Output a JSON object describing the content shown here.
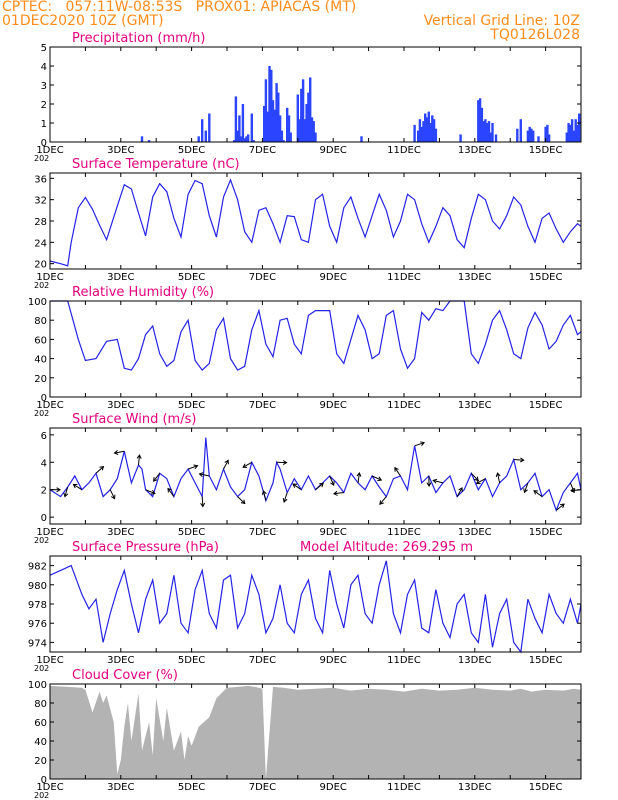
{
  "header": {
    "line1_left": "CPTEC:   057:11W-08:53S   PROX01: APIACAS (MT)",
    "line2_left": "01DEC2020 10Z (GMT)",
    "line2_right": "Vertical Grid Line: 10Z",
    "line3_right": "TQ0126L028",
    "color": "#ff8c1a"
  },
  "colors": {
    "title": "#e6007e",
    "series": "#2323e6",
    "precip_bar": "#2b45ff",
    "cloud_fill": "#b3b3b3",
    "axis": "#000000"
  },
  "x_axis": {
    "start": "01DEC2020 10Z",
    "end": "16DEC2020 10Z",
    "days": 15,
    "tick_labels": [
      "1DEC",
      "3DEC",
      "5DEC",
      "7DEC",
      "9DEC",
      "11DEC",
      "13DEC",
      "15DEC"
    ],
    "tick_days": [
      0,
      2,
      4,
      6,
      8,
      10,
      12,
      14
    ],
    "year_fragment": "202"
  },
  "chart_data": [
    {
      "id": "precip",
      "type": "bar",
      "title": "Precipitation (mm/h)",
      "ylim": [
        0,
        5
      ],
      "yticks": [
        0,
        1,
        2,
        3,
        4,
        5
      ],
      "x_days": [
        2.6,
        2.8,
        4.2,
        4.3,
        4.4,
        4.5,
        5.2,
        5.25,
        5.3,
        5.35,
        5.4,
        5.45,
        5.5,
        5.55,
        5.6,
        5.7,
        5.75,
        6.05,
        6.1,
        6.15,
        6.2,
        6.25,
        6.3,
        6.35,
        6.4,
        6.45,
        6.5,
        6.55,
        6.6,
        6.7,
        6.75,
        6.8,
        7.0,
        7.05,
        7.1,
        7.15,
        7.2,
        7.25,
        7.3,
        7.35,
        7.4,
        7.45,
        7.5,
        8.8,
        10.3,
        10.4,
        10.45,
        10.5,
        10.55,
        10.6,
        10.65,
        10.7,
        10.75,
        10.8,
        10.85,
        10.9,
        11.6,
        12.1,
        12.15,
        12.2,
        12.25,
        12.3,
        12.35,
        12.4,
        12.45,
        12.5,
        12.6,
        13.2,
        13.3,
        13.5,
        13.55,
        13.6,
        13.65,
        13.8,
        14.0,
        14.05,
        14.1,
        14.6,
        14.65,
        14.7,
        14.75,
        14.8,
        14.85,
        14.9,
        14.95
      ],
      "values": [
        0.3,
        0.1,
        0.3,
        1.2,
        0.6,
        1.5,
        0.1,
        2.4,
        0.6,
        1.4,
        0.3,
        2.0,
        0.2,
        0.3,
        0.4,
        1.5,
        0.1,
        1.9,
        3.3,
        1.6,
        4.0,
        3.8,
        2.2,
        1.7,
        3.1,
        2.6,
        1.4,
        0.6,
        0.1,
        1.8,
        1.4,
        0.5,
        2.5,
        1.2,
        2.8,
        3.3,
        1.2,
        2.0,
        2.6,
        3.4,
        1.3,
        1.1,
        0.5,
        0.3,
        0.9,
        0.6,
        1.2,
        0.8,
        1.1,
        1.5,
        1.3,
        1.6,
        1.0,
        1.4,
        1.2,
        0.7,
        0.4,
        2.2,
        2.3,
        1.8,
        1.1,
        1.2,
        1.0,
        1.1,
        0.5,
        1.0,
        0.4,
        0.7,
        1.2,
        0.6,
        0.8,
        0.7,
        0.6,
        0.3,
        0.8,
        0.9,
        0.4,
        0.5,
        1.0,
        0.9,
        1.2,
        0.6,
        1.2,
        0.9,
        1.5
      ]
    },
    {
      "id": "temperature",
      "type": "line",
      "title": "Surface Temperature (nC)",
      "ylim": [
        19,
        37
      ],
      "yticks": [
        20,
        24,
        28,
        32,
        36
      ],
      "x_days": [
        0,
        0.3,
        0.5,
        0.6,
        0.8,
        1.0,
        1.2,
        1.4,
        1.6,
        1.9,
        2.1,
        2.3,
        2.5,
        2.7,
        2.9,
        3.1,
        3.3,
        3.5,
        3.7,
        3.9,
        4.1,
        4.3,
        4.5,
        4.7,
        4.9,
        5.1,
        5.3,
        5.5,
        5.7,
        5.9,
        6.1,
        6.3,
        6.5,
        6.7,
        6.9,
        7.1,
        7.3,
        7.5,
        7.7,
        7.9,
        8.1,
        8.3,
        8.5,
        8.7,
        8.9,
        9.1,
        9.3,
        9.5,
        9.7,
        9.9,
        10.1,
        10.3,
        10.5,
        10.7,
        10.9,
        11.1,
        11.3,
        11.5,
        11.7,
        11.9,
        12.1,
        12.3,
        12.5,
        12.7,
        12.9,
        13.1,
        13.3,
        13.5,
        13.7,
        13.9,
        14.1,
        14.3,
        14.5,
        14.7,
        14.9,
        15.0
      ],
      "values": [
        20.5,
        20.0,
        19.6,
        24.0,
        30.5,
        32.4,
        30.2,
        27.2,
        24.5,
        30.8,
        34.8,
        34.0,
        29.5,
        25.2,
        32.5,
        35.0,
        33.5,
        28.5,
        25.0,
        33.0,
        35.6,
        35.0,
        29.0,
        25.0,
        32.5,
        35.7,
        32.0,
        26.0,
        24.0,
        30.0,
        30.5,
        27.5,
        24.0,
        29.0,
        28.8,
        24.5,
        24.0,
        32.0,
        33.0,
        27.0,
        24.0,
        30.5,
        32.5,
        28.5,
        25.0,
        29.0,
        33.0,
        30.0,
        25.0,
        28.0,
        33.0,
        32.0,
        27.5,
        24.0,
        27.0,
        30.5,
        29.0,
        24.5,
        23.0,
        28.5,
        33.0,
        32.0,
        28.0,
        26.5,
        29.0,
        32.5,
        31.0,
        27.0,
        24.0,
        28.5,
        29.5,
        26.5,
        24.0,
        26.0,
        27.5,
        27.0
      ]
    },
    {
      "id": "humidity",
      "type": "line",
      "title": "Relative Humidity (%)",
      "ylim": [
        0,
        100
      ],
      "yticks": [
        0,
        20,
        40,
        60,
        80,
        100
      ],
      "x_days": [
        0,
        0.5,
        0.8,
        1.0,
        1.3,
        1.6,
        1.9,
        2.1,
        2.3,
        2.5,
        2.7,
        2.9,
        3.1,
        3.3,
        3.5,
        3.7,
        3.9,
        4.1,
        4.3,
        4.5,
        4.7,
        4.9,
        5.1,
        5.3,
        5.5,
        5.7,
        5.9,
        6.1,
        6.3,
        6.5,
        6.7,
        6.9,
        7.1,
        7.3,
        7.5,
        7.7,
        7.9,
        8.1,
        8.3,
        8.5,
        8.7,
        8.9,
        9.1,
        9.3,
        9.5,
        9.7,
        9.9,
        10.1,
        10.3,
        10.5,
        10.7,
        10.9,
        11.1,
        11.3,
        11.5,
        11.7,
        11.9,
        12.1,
        12.3,
        12.5,
        12.7,
        12.9,
        13.1,
        13.3,
        13.5,
        13.7,
        13.9,
        14.1,
        14.3,
        14.5,
        14.7,
        14.9,
        15.0
      ],
      "values": [
        100,
        100,
        60,
        38,
        40,
        58,
        60,
        30,
        28,
        40,
        65,
        74,
        45,
        32,
        38,
        68,
        80,
        38,
        28,
        35,
        70,
        82,
        40,
        28,
        32,
        70,
        90,
        55,
        42,
        80,
        82,
        55,
        45,
        85,
        90,
        90,
        90,
        45,
        35,
        60,
        85,
        70,
        40,
        45,
        85,
        90,
        50,
        30,
        40,
        88,
        80,
        92,
        90,
        100,
        100,
        100,
        45,
        35,
        55,
        80,
        90,
        70,
        45,
        40,
        72,
        88,
        75,
        50,
        58,
        75,
        85,
        65,
        68
      ]
    },
    {
      "id": "wind",
      "type": "line",
      "title": "Surface Wind (m/s)",
      "ylim": [
        -0.5,
        6.5
      ],
      "yticks": [
        0,
        2,
        4,
        6
      ],
      "x_days": [
        0,
        0.3,
        0.5,
        0.7,
        0.9,
        1.1,
        1.3,
        1.5,
        1.7,
        1.9,
        2.1,
        2.3,
        2.5,
        2.6,
        2.7,
        2.9,
        3.1,
        3.3,
        3.5,
        3.7,
        3.9,
        4.1,
        4.3,
        4.4,
        4.5,
        4.7,
        4.9,
        5.1,
        5.3,
        5.5,
        5.7,
        5.9,
        6.1,
        6.3,
        6.4,
        6.5,
        6.7,
        6.9,
        7.1,
        7.3,
        7.5,
        7.7,
        7.9,
        8.1,
        8.3,
        8.5,
        8.7,
        8.9,
        9.1,
        9.3,
        9.5,
        9.7,
        9.9,
        10.1,
        10.3,
        10.5,
        10.7,
        10.9,
        11.1,
        11.3,
        11.5,
        11.7,
        11.9,
        12.1,
        12.3,
        12.5,
        12.7,
        12.9,
        13.1,
        13.3,
        13.5,
        13.7,
        13.9,
        14.1,
        14.3,
        14.5,
        14.7,
        14.9,
        15.0
      ],
      "values": [
        2.0,
        1.5,
        2.2,
        3.0,
        2.0,
        2.5,
        3.2,
        1.5,
        2.0,
        2.8,
        4.8,
        2.5,
        3.8,
        3.5,
        2.0,
        1.5,
        3.2,
        2.8,
        1.5,
        2.8,
        3.5,
        2.5,
        1.5,
        5.8,
        3.0,
        2.0,
        3.5,
        2.2,
        1.5,
        2.0,
        4.0,
        3.0,
        1.2,
        2.5,
        4.0,
        3.5,
        1.8,
        2.8,
        2.0,
        3.0,
        2.0,
        2.5,
        3.0,
        2.5,
        1.8,
        3.2,
        2.5,
        2.0,
        3.0,
        2.2,
        1.5,
        2.8,
        3.0,
        2.0,
        5.2,
        2.5,
        3.0,
        1.8,
        2.5,
        3.0,
        1.5,
        2.0,
        3.2,
        2.0,
        2.8,
        1.5,
        2.5,
        3.0,
        4.2,
        2.0,
        2.5,
        3.2,
        1.5,
        2.0,
        0.5,
        1.8,
        2.5,
        3.2,
        2.0
      ]
    },
    {
      "id": "pressure",
      "type": "line",
      "title": "Surface Pressure (hPa)",
      "annotation": "Model Altitude: 269.295 m",
      "ylim": [
        973,
        983
      ],
      "yticks": [
        974,
        976,
        978,
        980,
        982
      ],
      "x_days": [
        0,
        0.3,
        0.6,
        0.9,
        1.1,
        1.3,
        1.5,
        1.7,
        1.9,
        2.1,
        2.3,
        2.5,
        2.7,
        2.9,
        3.1,
        3.3,
        3.5,
        3.7,
        3.9,
        4.1,
        4.3,
        4.5,
        4.7,
        4.9,
        5.1,
        5.3,
        5.5,
        5.7,
        5.9,
        6.1,
        6.3,
        6.5,
        6.7,
        6.9,
        7.1,
        7.3,
        7.5,
        7.7,
        7.9,
        8.1,
        8.3,
        8.5,
        8.7,
        8.9,
        9.1,
        9.3,
        9.5,
        9.7,
        9.9,
        10.1,
        10.3,
        10.5,
        10.7,
        10.9,
        11.1,
        11.3,
        11.5,
        11.7,
        11.9,
        12.1,
        12.3,
        12.5,
        12.7,
        12.9,
        13.1,
        13.3,
        13.5,
        13.7,
        13.9,
        14.1,
        14.3,
        14.5,
        14.7,
        14.9,
        15.0
      ],
      "values": [
        981.0,
        981.5,
        982.0,
        979.0,
        977.5,
        978.5,
        974.0,
        977.0,
        979.5,
        981.5,
        978.0,
        975.0,
        978.5,
        980.5,
        976.0,
        977.0,
        981.0,
        976.0,
        975.0,
        979.5,
        981.5,
        977.0,
        975.5,
        980.5,
        981.0,
        975.5,
        977.0,
        981.0,
        979.0,
        975.0,
        976.5,
        980.0,
        976.0,
        975.0,
        979.0,
        980.5,
        976.5,
        975.0,
        981.5,
        978.0,
        975.5,
        980.0,
        981.0,
        977.0,
        976.0,
        980.0,
        982.5,
        977.0,
        975.0,
        979.0,
        980.5,
        975.5,
        975.0,
        979.5,
        976.0,
        974.5,
        978.0,
        979.0,
        975.0,
        974.0,
        979.0,
        973.5,
        977.0,
        978.5,
        974.0,
        973.0,
        978.5,
        976.5,
        975.0,
        979.0,
        977.0,
        976.0,
        978.5,
        976.0,
        978.0
      ]
    },
    {
      "id": "cloud",
      "type": "area",
      "title": "Cloud Cover (%)",
      "ylim": [
        0,
        100
      ],
      "yticks": [
        0,
        20,
        40,
        60,
        80,
        100
      ],
      "x_days": [
        0,
        0.5,
        0.9,
        1.0,
        1.2,
        1.4,
        1.5,
        1.6,
        1.8,
        1.9,
        2.0,
        2.1,
        2.2,
        2.3,
        2.5,
        2.6,
        2.8,
        2.9,
        3.0,
        3.2,
        3.3,
        3.5,
        3.7,
        3.8,
        3.9,
        4.0,
        4.2,
        4.5,
        4.7,
        5.0,
        5.3,
        5.6,
        5.8,
        5.9,
        6.0,
        6.1,
        6.3,
        6.6,
        7.0,
        7.5,
        8.0,
        8.5,
        9.0,
        9.5,
        10.0,
        10.5,
        11.0,
        11.5,
        12.0,
        12.5,
        13.0,
        13.3,
        13.6,
        14.0,
        14.5,
        14.8,
        15.0
      ],
      "values": [
        98,
        97,
        96,
        94,
        70,
        92,
        80,
        88,
        60,
        5,
        20,
        55,
        80,
        40,
        90,
        30,
        60,
        25,
        85,
        40,
        75,
        30,
        50,
        20,
        45,
        35,
        55,
        65,
        85,
        96,
        97,
        98,
        97,
        96,
        95,
        0,
        97,
        96,
        94,
        95,
        96,
        93,
        95,
        94,
        92,
        95,
        93,
        94,
        96,
        94,
        93,
        95,
        92,
        94,
        93,
        95,
        94
      ]
    }
  ]
}
